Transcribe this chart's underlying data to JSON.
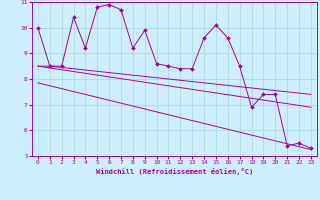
{
  "xlabel": "Windchill (Refroidissement éolien,°C)",
  "background_color": "#cceeff",
  "line_color": "#aa00aa",
  "grid_color": "#aadddd",
  "xlim": [
    -0.5,
    23.5
  ],
  "ylim": [
    5,
    11
  ],
  "yticks": [
    5,
    6,
    7,
    8,
    9,
    10,
    11
  ],
  "xticks": [
    0,
    1,
    2,
    3,
    4,
    5,
    6,
    7,
    8,
    9,
    10,
    11,
    12,
    13,
    14,
    15,
    16,
    17,
    18,
    19,
    20,
    21,
    22,
    23
  ],
  "series1_x": [
    0,
    1,
    2,
    3,
    4,
    5,
    6,
    7,
    8,
    9,
    10,
    11,
    12,
    13,
    14,
    15,
    16,
    17,
    18,
    19,
    20,
    21,
    22,
    23
  ],
  "series1_y": [
    10.0,
    8.5,
    8.5,
    10.4,
    9.2,
    10.8,
    10.9,
    10.7,
    9.2,
    9.9,
    8.6,
    8.5,
    8.4,
    8.4,
    9.6,
    10.1,
    9.6,
    8.5,
    6.9,
    7.4,
    7.4,
    5.4,
    5.5,
    5.3
  ],
  "series2_x": [
    0,
    1,
    2,
    3,
    4,
    5,
    6,
    7,
    8,
    9,
    10,
    11,
    12,
    13,
    14,
    15,
    16,
    17,
    18,
    19,
    20,
    21,
    22,
    23
  ],
  "series2_y": [
    8.5,
    8.5,
    8.45,
    8.4,
    8.35,
    8.3,
    8.25,
    8.2,
    8.15,
    8.1,
    8.05,
    8.0,
    7.95,
    7.9,
    7.85,
    7.8,
    7.75,
    7.7,
    7.65,
    7.6,
    7.55,
    7.5,
    7.45,
    7.4
  ],
  "series3_x": [
    0,
    23
  ],
  "series3_y": [
    7.85,
    5.25
  ],
  "series4_x": [
    0,
    23
  ],
  "series4_y": [
    8.5,
    6.9
  ]
}
